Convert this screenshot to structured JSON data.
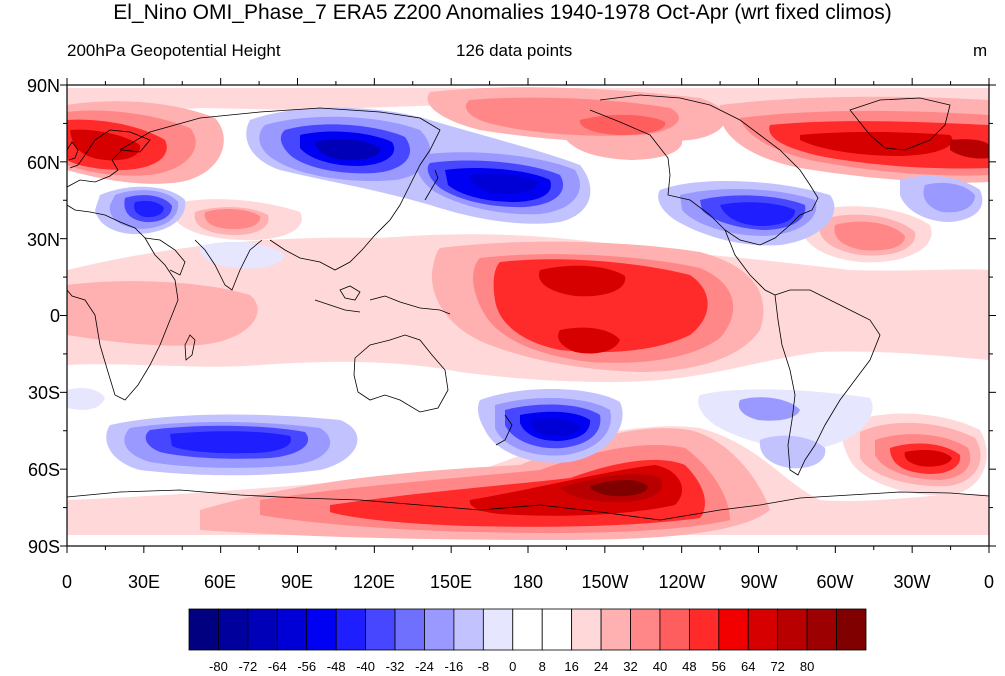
{
  "title": "El_Nino OMI_Phase_7 ERA5 Z200 Anomalies 1940-1978 Oct-Apr (wrt fixed climos)",
  "left_string": "200hPa Geopotential Height",
  "center_string": "126 data points",
  "right_string": "m",
  "lat_labels": [
    "90N",
    "60N",
    "30N",
    "0",
    "30S",
    "60S",
    "90S"
  ],
  "lon_labels": [
    "0",
    "30E",
    "60E",
    "90E",
    "120E",
    "150E",
    "180",
    "150W",
    "120W",
    "90W",
    "60W",
    "30W",
    "0"
  ],
  "colorbar": {
    "levels": [
      "-80",
      "-72",
      "-64",
      "-56",
      "-48",
      "-40",
      "-32",
      "-24",
      "-16",
      "-8",
      "0",
      "8",
      "16",
      "24",
      "32",
      "40",
      "48",
      "56",
      "64",
      "72",
      "80"
    ],
    "colors": [
      "#000080",
      "#00009c",
      "#0000b8",
      "#0000d6",
      "#0000f2",
      "#1e1eff",
      "#4747ff",
      "#7070ff",
      "#9999ff",
      "#c2c2ff",
      "#e6e6ff",
      "#ffffff",
      "#ffffff",
      "#ffd9d9",
      "#ffb0b0",
      "#ff8787",
      "#ff5e5e",
      "#ff2a2a",
      "#f20000",
      "#d60000",
      "#b80000",
      "#9c0000",
      "#800000"
    ]
  },
  "anomaly_features": [
    {
      "label": "Western Europe positive",
      "lon": 10,
      "lat": 66,
      "value": 56
    },
    {
      "label": "Central Asia negative",
      "lon": 30,
      "lat": 40,
      "value": -40
    },
    {
      "label": "Middle East positive",
      "lon": 55,
      "lat": 38,
      "value": 32
    },
    {
      "label": "Siberia negative",
      "lon": 105,
      "lat": 62,
      "value": -64
    },
    {
      "label": "North Pacific negative",
      "lon": 160,
      "lat": 50,
      "value": -56
    },
    {
      "label": "Arctic Pacific positive",
      "lon": 200,
      "lat": 78,
      "value": 40
    },
    {
      "label": "Greenland positive",
      "lon": 320,
      "lat": 67,
      "value": 48
    },
    {
      "label": "North America negative",
      "lon": 270,
      "lat": 40,
      "value": -48
    },
    {
      "label": "North Atlantic positive",
      "lon": 320,
      "lat": 30,
      "value": 40
    },
    {
      "label": "Central Pacific positive (north)",
      "lon": 195,
      "lat": 17,
      "value": 56
    },
    {
      "label": "Central Pacific positive (south)",
      "lon": 210,
      "lat": -12,
      "value": 56
    },
    {
      "label": "Indian Ocean positive",
      "lon": 30,
      "lat": 2,
      "value": 24
    },
    {
      "label": "Southern Indian Ocean negative",
      "lon": 60,
      "lat": -48,
      "value": -48
    },
    {
      "label": "New Zealand negative",
      "lon": 190,
      "lat": -45,
      "value": -64
    },
    {
      "label": "Southern Ocean positive",
      "lon": 225,
      "lat": -68,
      "value": 80
    },
    {
      "label": "South Atlantic positive",
      "lon": 340,
      "lat": -55,
      "value": 56
    },
    {
      "label": "South Pacific negative",
      "lon": 260,
      "lat": -38,
      "value": -24
    }
  ]
}
